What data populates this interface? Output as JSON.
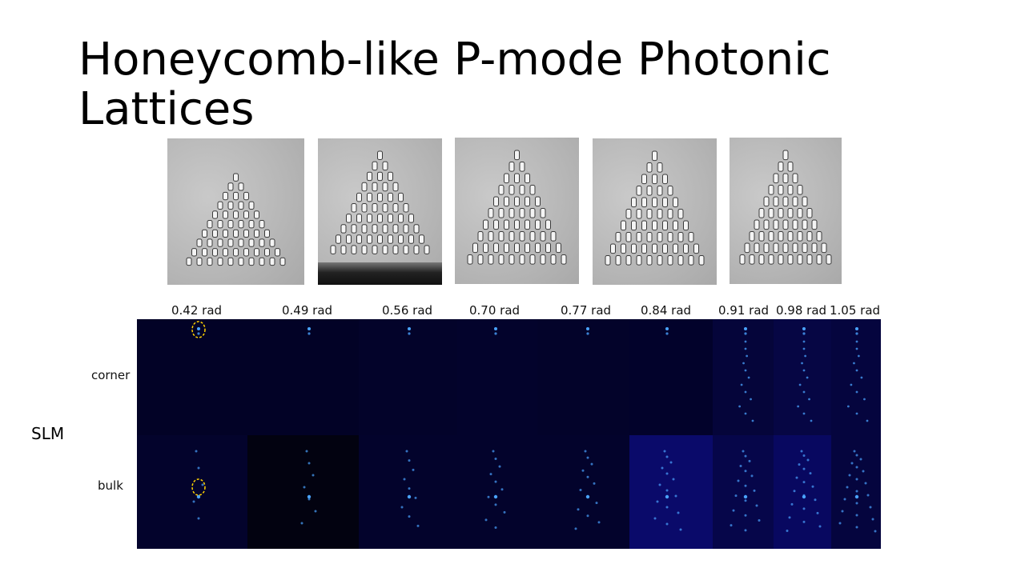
{
  "slide": {
    "title": "Honeycomb-like P-mode Photonic Lattices",
    "side_label": "SLM",
    "row_labels": [
      "corner",
      "bulk"
    ],
    "phase_labels": [
      "0.42 rad",
      "0.49 rad",
      "0.56 rad",
      "0.70 rad",
      "0.77 rad",
      "0.84 rad",
      "0.91 rad",
      "0.98 rad",
      "1.05 rad"
    ],
    "micrographs_count": 5,
    "colors": {
      "background": "#ffffff",
      "slm_background": "#03032a",
      "spot_color": "#4aa3ff",
      "highlight_ring": "#ffd200"
    }
  }
}
